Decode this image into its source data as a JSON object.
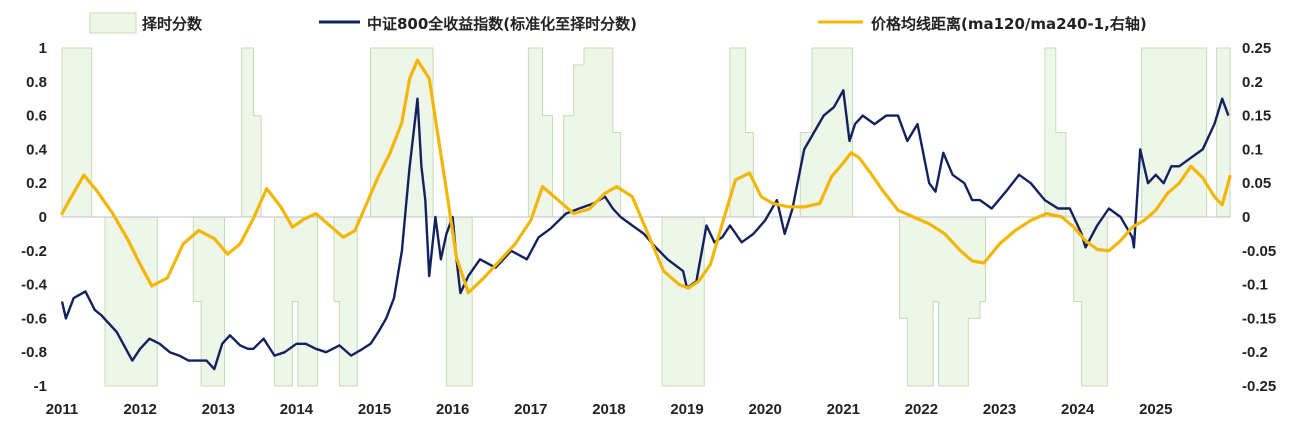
{
  "chart_data": {
    "type": "line",
    "title": "",
    "legend": [
      {
        "label": "择时分数",
        "kind": "area",
        "color": "#eef5e9",
        "stroke": "#c5ddb6"
      },
      {
        "label": "中证800全收益指数(标准化至择时分数)",
        "kind": "line",
        "color": "#12225f"
      },
      {
        "label": "价格均线距离(ma120/ma240-1,右轴)",
        "kind": "line",
        "color": "#f2b705"
      }
    ],
    "x_axis": {
      "ticks": [
        "2011",
        "2012",
        "2013",
        "2014",
        "2015",
        "2016",
        "2017",
        "2018",
        "2019",
        "2020",
        "2021",
        "2022",
        "2023",
        "2024",
        "2025"
      ],
      "start": 2011.0,
      "end": 2025.95
    },
    "left_axis": {
      "min": -1,
      "max": 1,
      "ticks": [
        "1",
        "0.8",
        "0.6",
        "0.4",
        "0.2",
        "0",
        "-0.2",
        "-0.4",
        "-0.6",
        "-0.8",
        "-1"
      ]
    },
    "right_axis": {
      "min": -0.25,
      "max": 0.25,
      "ticks": [
        "0.25",
        "0.2",
        "0.15",
        "0.1",
        "0.05",
        "0",
        "-0.05",
        "-0.1",
        "-0.15",
        "-0.2",
        "-0.25"
      ]
    },
    "timing_score_segments": [
      [
        2011.0,
        1
      ],
      [
        2011.38,
        0
      ],
      [
        2011.55,
        -1
      ],
      [
        2012.22,
        0
      ],
      [
        2012.68,
        -0.5
      ],
      [
        2012.78,
        -1
      ],
      [
        2013.08,
        0
      ],
      [
        2013.3,
        1
      ],
      [
        2013.45,
        0.6
      ],
      [
        2013.55,
        0
      ],
      [
        2013.72,
        -1
      ],
      [
        2013.95,
        -0.5
      ],
      [
        2014.02,
        -1
      ],
      [
        2014.27,
        0
      ],
      [
        2014.48,
        -0.5
      ],
      [
        2014.55,
        -1
      ],
      [
        2014.78,
        0
      ],
      [
        2014.95,
        1
      ],
      [
        2015.75,
        0
      ],
      [
        2015.92,
        -1
      ],
      [
        2016.25,
        0
      ],
      [
        2016.97,
        1
      ],
      [
        2017.15,
        0.6
      ],
      [
        2017.28,
        0
      ],
      [
        2017.42,
        0.6
      ],
      [
        2017.55,
        0.9
      ],
      [
        2017.68,
        1
      ],
      [
        2018.05,
        0.5
      ],
      [
        2018.15,
        0
      ],
      [
        2018.68,
        -1
      ],
      [
        2019.22,
        0
      ],
      [
        2019.55,
        1
      ],
      [
        2019.75,
        0.5
      ],
      [
        2019.85,
        0
      ],
      [
        2020.45,
        0.5
      ],
      [
        2020.6,
        1
      ],
      [
        2021.12,
        0
      ],
      [
        2021.72,
        -0.6
      ],
      [
        2021.82,
        -1
      ],
      [
        2022.15,
        -0.5
      ],
      [
        2022.22,
        -1
      ],
      [
        2022.6,
        -0.6
      ],
      [
        2022.75,
        -0.5
      ],
      [
        2022.82,
        0
      ],
      [
        2023.58,
        1
      ],
      [
        2023.72,
        0.5
      ],
      [
        2023.85,
        0
      ],
      [
        2023.95,
        -0.5
      ],
      [
        2024.05,
        -1
      ],
      [
        2024.38,
        0
      ],
      [
        2024.75,
        0
      ],
      [
        2024.82,
        1
      ],
      [
        2025.65,
        0
      ],
      [
        2025.78,
        1
      ],
      [
        2025.95,
        0
      ]
    ],
    "series": [
      {
        "name": "中证800全收益指数(标准化至择时分数)",
        "axis": "left",
        "x": [
          2011.0,
          2011.05,
          2011.15,
          2011.3,
          2011.42,
          2011.5,
          2011.7,
          2011.9,
          2012.0,
          2012.12,
          2012.25,
          2012.38,
          2012.5,
          2012.62,
          2012.72,
          2012.85,
          2012.95,
          2013.05,
          2013.15,
          2013.28,
          2013.38,
          2013.45,
          2013.58,
          2013.72,
          2013.85,
          2014.0,
          2014.12,
          2014.25,
          2014.38,
          2014.55,
          2014.7,
          2014.85,
          2014.95,
          2015.05,
          2015.15,
          2015.25,
          2015.35,
          2015.42,
          2015.45,
          2015.5,
          2015.55,
          2015.6,
          2015.65,
          2015.7,
          2015.78,
          2015.85,
          2015.92,
          2016.0,
          2016.05,
          2016.1,
          2016.2,
          2016.35,
          2016.55,
          2016.75,
          2016.95,
          2017.1,
          2017.25,
          2017.45,
          2017.62,
          2017.8,
          2017.95,
          2018.05,
          2018.15,
          2018.3,
          2018.45,
          2018.6,
          2018.75,
          2018.95,
          2019.0,
          2019.12,
          2019.25,
          2019.35,
          2019.45,
          2019.55,
          2019.7,
          2019.85,
          2020.0,
          2020.15,
          2020.25,
          2020.35,
          2020.5,
          2020.6,
          2020.75,
          2020.88,
          2021.0,
          2021.08,
          2021.15,
          2021.25,
          2021.4,
          2021.55,
          2021.7,
          2021.82,
          2021.95,
          2022.1,
          2022.18,
          2022.28,
          2022.4,
          2022.55,
          2022.65,
          2022.75,
          2022.9,
          2023.08,
          2023.25,
          2023.4,
          2023.58,
          2023.75,
          2023.9,
          2024.05,
          2024.1,
          2024.25,
          2024.4,
          2024.55,
          2024.7,
          2024.72,
          2024.8,
          2024.9,
          2025.0,
          2025.1,
          2025.2,
          2025.3,
          2025.45,
          2025.6,
          2025.75,
          2025.85,
          2025.93
        ],
        "values": [
          -0.5,
          -0.6,
          -0.48,
          -0.44,
          -0.55,
          -0.58,
          -0.68,
          -0.85,
          -0.78,
          -0.72,
          -0.75,
          -0.8,
          -0.82,
          -0.85,
          -0.85,
          -0.85,
          -0.9,
          -0.75,
          -0.7,
          -0.76,
          -0.78,
          -0.78,
          -0.72,
          -0.82,
          -0.8,
          -0.75,
          -0.75,
          -0.78,
          -0.8,
          -0.76,
          -0.82,
          -0.78,
          -0.75,
          -0.68,
          -0.6,
          -0.48,
          -0.2,
          0.15,
          0.3,
          0.5,
          0.7,
          0.3,
          0.1,
          -0.35,
          0.0,
          -0.25,
          -0.1,
          0.0,
          -0.25,
          -0.45,
          -0.35,
          -0.25,
          -0.3,
          -0.2,
          -0.25,
          -0.12,
          -0.07,
          0.02,
          0.05,
          0.08,
          0.12,
          0.05,
          0.0,
          -0.05,
          -0.1,
          -0.18,
          -0.25,
          -0.32,
          -0.42,
          -0.38,
          -0.05,
          -0.15,
          -0.12,
          -0.05,
          -0.15,
          -0.1,
          -0.02,
          0.1,
          -0.1,
          0.05,
          0.4,
          0.48,
          0.6,
          0.65,
          0.75,
          0.45,
          0.55,
          0.6,
          0.55,
          0.6,
          0.6,
          0.45,
          0.55,
          0.2,
          0.15,
          0.38,
          0.25,
          0.2,
          0.1,
          0.1,
          0.05,
          0.15,
          0.25,
          0.2,
          0.1,
          0.05,
          0.05,
          -0.1,
          -0.18,
          -0.05,
          0.05,
          0.0,
          -0.12,
          -0.18,
          0.4,
          0.2,
          0.25,
          0.2,
          0.3,
          0.3,
          0.35,
          0.4,
          0.55,
          0.7,
          0.6
        ]
      },
      {
        "name": "价格均线距离(ma120/ma240-1,右轴)",
        "axis": "right",
        "x": [
          2011.0,
          2011.12,
          2011.28,
          2011.45,
          2011.65,
          2011.85,
          2012.0,
          2012.15,
          2012.35,
          2012.55,
          2012.75,
          2012.95,
          2013.12,
          2013.28,
          2013.45,
          2013.62,
          2013.8,
          2013.95,
          2014.1,
          2014.25,
          2014.45,
          2014.6,
          2014.75,
          2014.9,
          2015.05,
          2015.2,
          2015.35,
          2015.45,
          2015.55,
          2015.7,
          2015.8,
          2015.92,
          2016.05,
          2016.2,
          2016.4,
          2016.6,
          2016.8,
          2017.0,
          2017.15,
          2017.35,
          2017.55,
          2017.75,
          2017.95,
          2018.1,
          2018.3,
          2018.5,
          2018.7,
          2018.9,
          2019.02,
          2019.15,
          2019.3,
          2019.45,
          2019.62,
          2019.8,
          2019.95,
          2020.1,
          2020.3,
          2020.5,
          2020.7,
          2020.85,
          2021.0,
          2021.1,
          2021.2,
          2021.35,
          2021.5,
          2021.7,
          2021.9,
          2022.1,
          2022.3,
          2022.5,
          2022.65,
          2022.8,
          2023.0,
          2023.2,
          2023.4,
          2023.6,
          2023.8,
          2023.95,
          2024.1,
          2024.25,
          2024.4,
          2024.55,
          2024.7,
          2024.85,
          2025.0,
          2025.15,
          2025.3,
          2025.45,
          2025.6,
          2025.75,
          2025.85,
          2025.95
        ],
        "values": [
          0.005,
          0.03,
          0.062,
          0.038,
          0.005,
          -0.035,
          -0.07,
          -0.102,
          -0.09,
          -0.04,
          -0.02,
          -0.032,
          -0.055,
          -0.04,
          -0.002,
          0.042,
          0.015,
          -0.015,
          -0.003,
          0.005,
          -0.015,
          -0.03,
          -0.02,
          0.02,
          0.06,
          0.095,
          0.14,
          0.205,
          0.232,
          0.205,
          0.13,
          0.04,
          -0.06,
          -0.112,
          -0.09,
          -0.065,
          -0.04,
          -0.005,
          0.045,
          0.025,
          0.005,
          0.012,
          0.035,
          0.045,
          0.03,
          -0.025,
          -0.08,
          -0.1,
          -0.105,
          -0.095,
          -0.07,
          -0.01,
          0.055,
          0.065,
          0.03,
          0.02,
          0.015,
          0.015,
          0.02,
          0.06,
          0.08,
          0.095,
          0.088,
          0.065,
          0.04,
          0.01,
          0.0,
          -0.01,
          -0.025,
          -0.05,
          -0.065,
          -0.068,
          -0.04,
          -0.02,
          -0.005,
          0.005,
          0.0,
          -0.015,
          -0.035,
          -0.048,
          -0.05,
          -0.035,
          -0.015,
          -0.005,
          0.01,
          0.035,
          0.05,
          0.075,
          0.058,
          0.03,
          0.018,
          0.06
        ]
      }
    ]
  }
}
